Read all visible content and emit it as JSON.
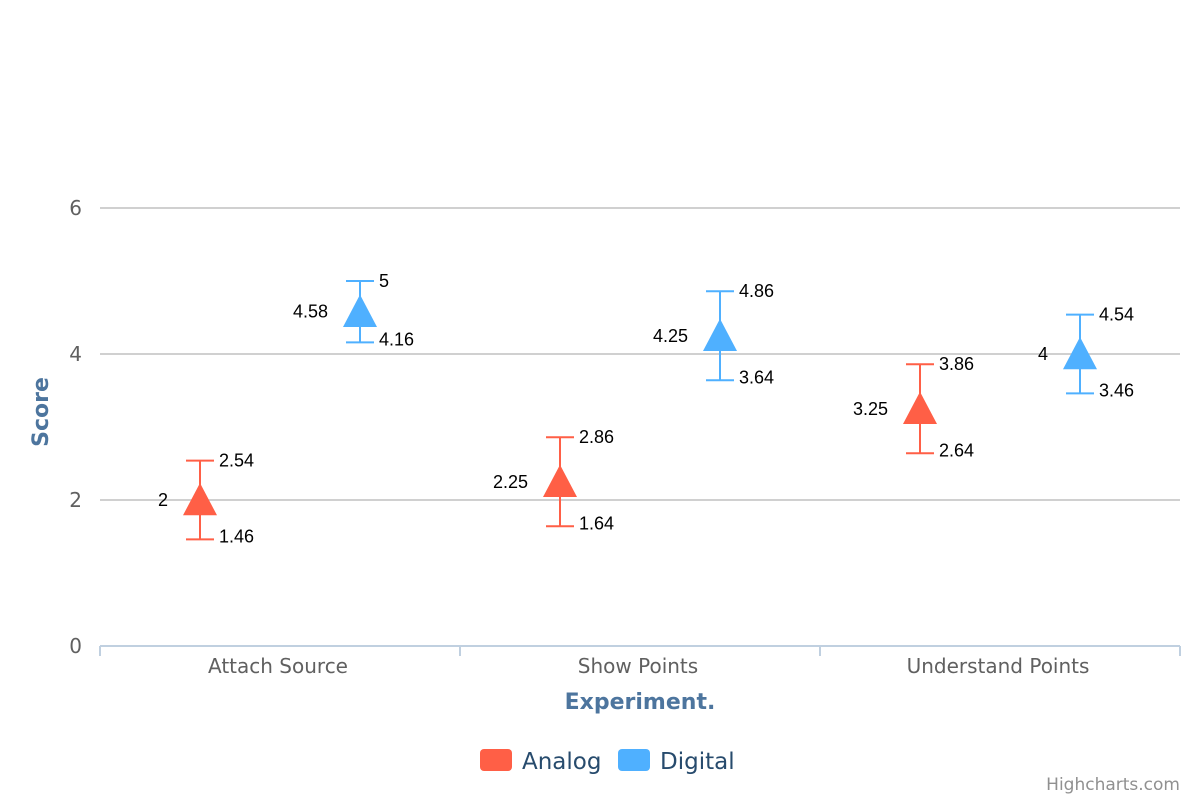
{
  "chart_data": {
    "type": "scatter",
    "categories": [
      "Attach Source",
      "Show Points",
      "Understand Points"
    ],
    "xlabel": "Experiment.",
    "ylabel": "Score",
    "ylim": [
      0,
      6
    ],
    "yticks": [
      0,
      2,
      4,
      6
    ],
    "grid": true,
    "legend_position": "bottom-center",
    "marker": "triangle",
    "series": [
      {
        "name": "Analog",
        "color": "#ff5f46",
        "values": [
          2,
          2.25,
          3.25
        ],
        "error_high": [
          2.54,
          2.86,
          3.86
        ],
        "error_low": [
          1.46,
          1.64,
          2.64
        ]
      },
      {
        "name": "Digital",
        "color": "#4fb0ff",
        "values": [
          4.58,
          4.25,
          4
        ],
        "error_high": [
          5,
          4.86,
          4.54
        ],
        "error_low": [
          4.16,
          3.64,
          3.46
        ]
      }
    ]
  },
  "credits": "Highcharts.com"
}
